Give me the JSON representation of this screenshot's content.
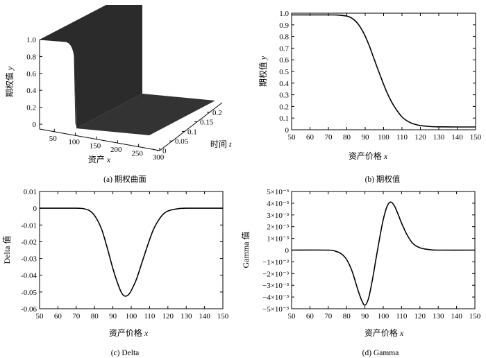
{
  "chart_data": [
    {
      "type": "surface",
      "caption": "(a)  期权曲面",
      "xlabel_main": "资产 ",
      "xlabel_var": "x",
      "ylabel_main": "时间 ",
      "ylabel_var": "t",
      "zlabel_main": "期权值 ",
      "zlabel_var": "y",
      "x_ticks": [
        "50",
        "100",
        "150",
        "200",
        "250",
        "300"
      ],
      "t_ticks": [
        "0",
        "0.05",
        "0.1",
        "0.15",
        "0.2"
      ],
      "z_ticks": [
        "0",
        "0.2",
        "0.4",
        "0.6",
        "0.8",
        "1.0"
      ],
      "x_range": [
        0,
        300
      ],
      "t_range": [
        0,
        0.25
      ],
      "z_range": [
        0,
        1.0
      ]
    },
    {
      "type": "line",
      "caption": "(b)  期权值",
      "xlabel_main": "资产价格 ",
      "xlabel_var": "x",
      "ylabel_main": "期权值 ",
      "ylabel_var": "y",
      "xlim": [
        50,
        150
      ],
      "ylim": [
        0,
        1.0
      ],
      "x_ticks": [
        "50",
        "60",
        "70",
        "80",
        "90",
        "100",
        "110",
        "120",
        "130",
        "140",
        "150"
      ],
      "y_ticks": [
        "0",
        "0.1",
        "0.2",
        "0.3",
        "0.4",
        "0.5",
        "0.6",
        "0.7",
        "0.8",
        "0.9",
        "1.0"
      ],
      "x": [
        50,
        60,
        70,
        75,
        80,
        83,
        86,
        89,
        92,
        95,
        97,
        100,
        103,
        106,
        110,
        114,
        118,
        122,
        126,
        130,
        140,
        150
      ],
      "y": [
        0.985,
        0.985,
        0.985,
        0.984,
        0.975,
        0.955,
        0.91,
        0.835,
        0.73,
        0.6,
        0.515,
        0.39,
        0.28,
        0.195,
        0.11,
        0.065,
        0.042,
        0.032,
        0.027,
        0.025,
        0.024,
        0.024
      ]
    },
    {
      "type": "line",
      "caption": "(c)  Delta",
      "xlabel_main": "资产价格 ",
      "xlabel_var": "x",
      "ylabel": "Delta 值",
      "xlim": [
        50,
        150
      ],
      "ylim": [
        -0.06,
        0.01
      ],
      "x_ticks": [
        "50",
        "60",
        "70",
        "80",
        "90",
        "100",
        "110",
        "120",
        "130",
        "140",
        "150"
      ],
      "y_ticks": [
        "0.01",
        "0",
        "-0.01",
        "-0.02",
        "-0.03",
        "-0.04",
        "-0.05",
        "-0.06"
      ],
      "x": [
        50,
        70,
        75,
        78,
        81,
        84,
        87,
        90,
        93,
        95,
        97,
        99,
        101,
        103,
        106,
        109,
        112,
        115,
        118,
        121,
        125,
        130,
        150
      ],
      "y": [
        0,
        0,
        -0.0005,
        -0.002,
        -0.006,
        -0.013,
        -0.024,
        -0.036,
        -0.046,
        -0.051,
        -0.0525,
        -0.051,
        -0.047,
        -0.042,
        -0.032,
        -0.022,
        -0.013,
        -0.007,
        -0.003,
        -0.0013,
        -0.0004,
        0,
        0
      ]
    },
    {
      "type": "line",
      "caption": "(d)  Gamma",
      "xlabel_main": "资产价格 ",
      "xlabel_var": "x",
      "ylabel": "Gamma 值",
      "xlim": [
        50,
        150
      ],
      "ylim": [
        -5,
        5
      ],
      "y_unit": "×10⁻³",
      "x_ticks": [
        "50",
        "60",
        "70",
        "80",
        "90",
        "100",
        "110",
        "120",
        "130",
        "140",
        "150"
      ],
      "y_ticks": [
        "5×10⁻³",
        "4×10⁻³",
        "3×10⁻³",
        "2×10⁻³",
        "1×10⁻³",
        "0",
        "−1×10⁻³",
        "−2×10⁻³",
        "−3×10⁻³",
        "−4×10⁻³",
        "−5×10⁻³"
      ],
      "x": [
        50,
        70,
        74,
        77,
        80,
        83,
        86,
        88,
        90,
        92,
        94,
        96,
        98,
        100,
        102,
        104,
        106,
        108,
        110,
        113,
        116,
        120,
        125,
        130,
        150
      ],
      "y": [
        0,
        0,
        -0.1,
        -0.3,
        -0.8,
        -1.8,
        -3.3,
        -4.2,
        -4.7,
        -4.1,
        -2.6,
        -0.8,
        1.0,
        2.6,
        3.7,
        4.1,
        3.8,
        3.1,
        2.3,
        1.3,
        0.6,
        0.2,
        0.05,
        0,
        0
      ]
    }
  ]
}
